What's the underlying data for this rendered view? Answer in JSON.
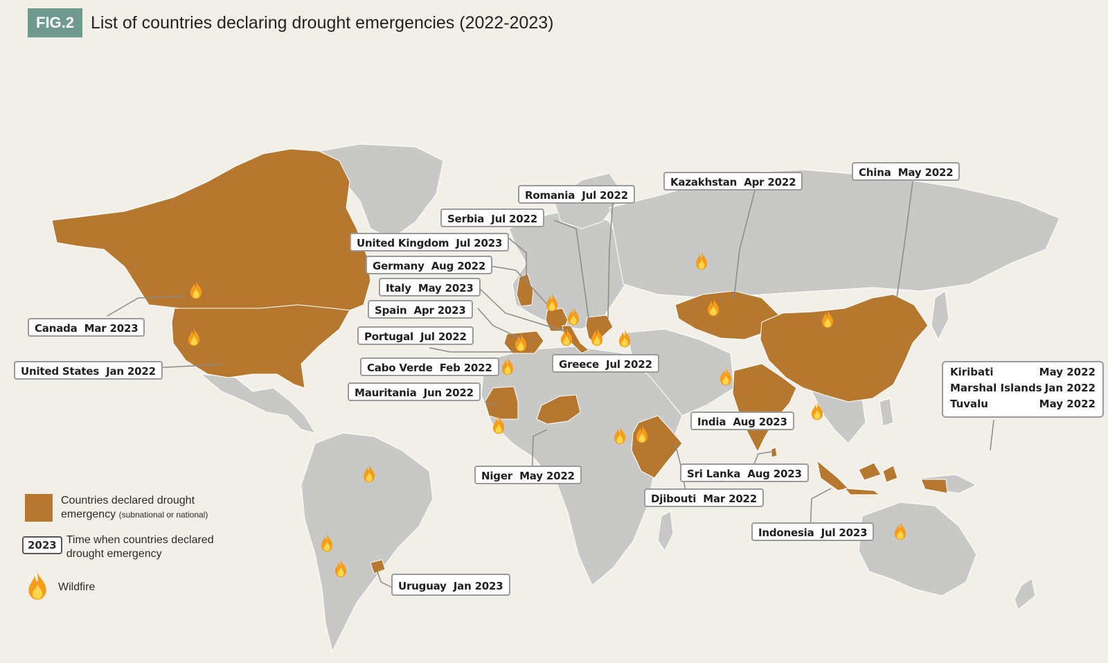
{
  "figure": {
    "badge": "FIG.2",
    "title": "List of countries declaring drought emergencies (2022-2023)"
  },
  "colors": {
    "background": "#f1efe8",
    "land": "#c8c9c6",
    "drought": "#b5782e",
    "badge": "#6f9a8d",
    "leader": "#8a8a8a"
  },
  "labels": [
    {
      "id": "canada",
      "country": "Canada",
      "date": "Mar 2023"
    },
    {
      "id": "united-states",
      "country": "United States",
      "date": "Jan 2022"
    },
    {
      "id": "united-kingdom",
      "country": "United Kingdom",
      "date": "Jul 2023"
    },
    {
      "id": "germany",
      "country": "Germany",
      "date": "Aug 2022"
    },
    {
      "id": "italy",
      "country": "Italy",
      "date": "May 2023"
    },
    {
      "id": "spain",
      "country": "Spain",
      "date": "Apr 2023"
    },
    {
      "id": "portugal",
      "country": "Portugal",
      "date": "Jul 2022"
    },
    {
      "id": "cabo-verde",
      "country": "Cabo Verde",
      "date": "Feb 2022"
    },
    {
      "id": "mauritania",
      "country": "Mauritania",
      "date": "Jun 2022"
    },
    {
      "id": "serbia",
      "country": "Serbia",
      "date": "Jul 2022"
    },
    {
      "id": "romania",
      "country": "Romania",
      "date": "Jul 2022"
    },
    {
      "id": "greece",
      "country": "Greece",
      "date": "Jul 2022"
    },
    {
      "id": "kazakhstan",
      "country": "Kazakhstan",
      "date": "Apr 2022"
    },
    {
      "id": "china",
      "country": "China",
      "date": "May 2022"
    },
    {
      "id": "india",
      "country": "India",
      "date": "Aug 2023"
    },
    {
      "id": "sri-lanka",
      "country": "Sri Lanka",
      "date": "Aug 2023"
    },
    {
      "id": "djibouti",
      "country": "Djibouti",
      "date": "Mar 2022"
    },
    {
      "id": "niger",
      "country": "Niger",
      "date": "May 2022"
    },
    {
      "id": "indonesia",
      "country": "Indonesia",
      "date": "Jul 2023"
    },
    {
      "id": "uruguay",
      "country": "Uruguay",
      "date": "Jan 2023"
    }
  ],
  "pacific": [
    {
      "country": "Kiribati",
      "date": "May 2022"
    },
    {
      "country": "Marshal Islands",
      "date": "Jan 2022"
    },
    {
      "country": "Tuvalu",
      "date": "May 2022"
    }
  ],
  "legend": {
    "drought_main": "Countries declared drought",
    "drought_line2": "emergency",
    "drought_sub": "(subnational or national)",
    "year_sample": "2023",
    "year_line1": "Time when countries declared",
    "year_line2": "drought emergency",
    "wildfire": "Wildfire"
  }
}
